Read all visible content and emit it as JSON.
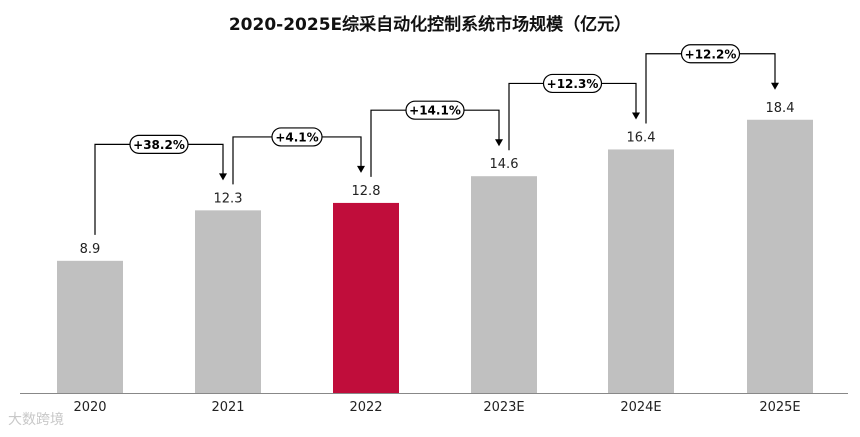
{
  "chart_data": {
    "type": "bar",
    "title": "2020-2025E综采自动化控制系统市场规模（亿元）",
    "categories": [
      "2020",
      "2021",
      "2022",
      "2023E",
      "2024E",
      "2025E"
    ],
    "values": [
      8.9,
      12.3,
      12.8,
      14.6,
      16.4,
      18.4
    ],
    "value_labels": [
      "8.9",
      "12.3",
      "12.8",
      "14.6",
      "16.4",
      "18.4"
    ],
    "growth_labels": [
      "+38.2%",
      "+4.1%",
      "+14.1%",
      "+12.3%",
      "+12.2%"
    ],
    "highlight_index": 2,
    "ylim": [
      0,
      20
    ],
    "grid": false,
    "legend": "none",
    "colors": {
      "bar": "#c0c0c0",
      "highlight": "#c00d3b",
      "text": "#222222",
      "arrow": "#000000"
    }
  },
  "watermark": "大数跨境"
}
